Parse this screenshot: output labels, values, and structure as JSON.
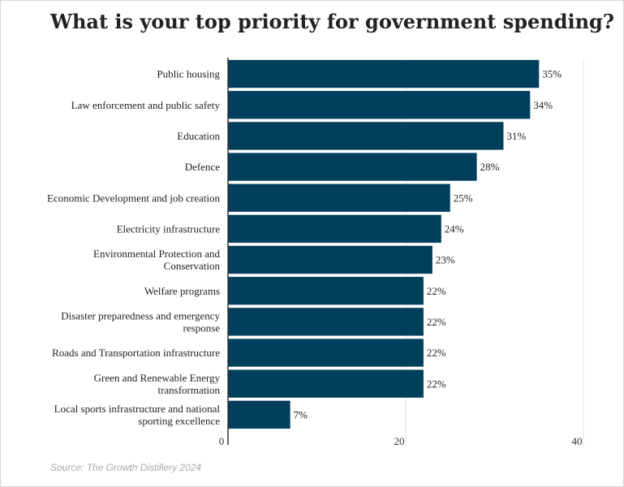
{
  "chart_data": {
    "type": "bar",
    "orientation": "horizontal",
    "title": "What is your top priority for government spending?",
    "categories": [
      "Public housing",
      "Law enforcement and public safety",
      "Education",
      "Defence",
      "Economic Development and job creation",
      "Electricity infrastructure",
      "Environmental Protection and Conservation",
      "Welfare programs",
      "Disaster preparedness and emergency response",
      "Roads and Transportation infrastructure",
      "Green and Renewable Energy transformation",
      "Local sports infrastructure and national sporting excellence"
    ],
    "category_lines": [
      [
        "Public housing"
      ],
      [
        "Law enforcement and public safety"
      ],
      [
        "Education"
      ],
      [
        "Defence"
      ],
      [
        "Economic Development and job creation"
      ],
      [
        "Electricity infrastructure"
      ],
      [
        "Environmental Protection and",
        "Conservation"
      ],
      [
        "Welfare programs"
      ],
      [
        "Disaster preparedness and emergency",
        "response"
      ],
      [
        "Roads and Transportation infrastructure"
      ],
      [
        "Green and Renewable Energy",
        "transformation"
      ],
      [
        "Local sports infrastructure and national",
        "sporting excellence"
      ]
    ],
    "values": [
      35,
      34,
      31,
      28,
      25,
      24,
      23,
      22,
      22,
      22,
      22,
      7
    ],
    "value_labels": [
      "35%",
      "34%",
      "31%",
      "28%",
      "25%",
      "24%",
      "23%",
      "22%",
      "22%",
      "22%",
      "22%",
      "7%"
    ],
    "xlim": [
      0,
      40
    ],
    "xticks": [
      0,
      20,
      40
    ],
    "xlabel": "",
    "ylabel": "",
    "grid": true,
    "legend": "none",
    "bar_color": "#003f5c"
  },
  "source": "Source: The Growth Distillery 2024"
}
